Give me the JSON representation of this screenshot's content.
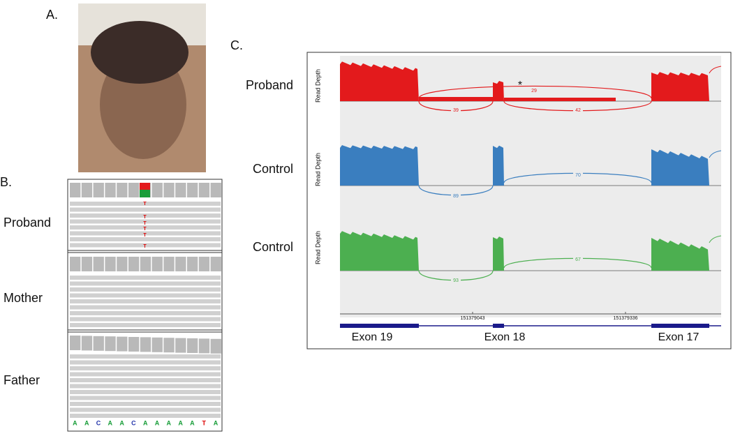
{
  "panel_a": {
    "label": "A."
  },
  "panel_b": {
    "label": "B.",
    "rows": [
      {
        "name": "Proband",
        "variant_reads": [
          "T",
          "T",
          "T",
          "T",
          "T",
          "T"
        ]
      },
      {
        "name": "Mother"
      },
      {
        "name": "Father"
      }
    ],
    "reference": [
      "A",
      "A",
      "C",
      "A",
      "A",
      "C",
      "A",
      "A",
      "A",
      "A",
      "A",
      "T",
      "A"
    ]
  },
  "panel_c": {
    "label": "C.",
    "y_axis_label": "Read Depth",
    "tracks": [
      {
        "name": "Proband",
        "color": "#e31a1c",
        "junctions": [
          "29",
          "39",
          "42"
        ],
        "marker": "*"
      },
      {
        "name": "Control",
        "color": "#3a7ebf",
        "junctions": [
          "70",
          "89"
        ]
      },
      {
        "name": "Control",
        "color": "#4caf50",
        "junctions": [
          "67",
          "93"
        ]
      }
    ],
    "coordinates": [
      "151379043",
      "151379336"
    ],
    "exons": [
      "Exon 19",
      "Exon 18",
      "Exon 17"
    ]
  }
}
